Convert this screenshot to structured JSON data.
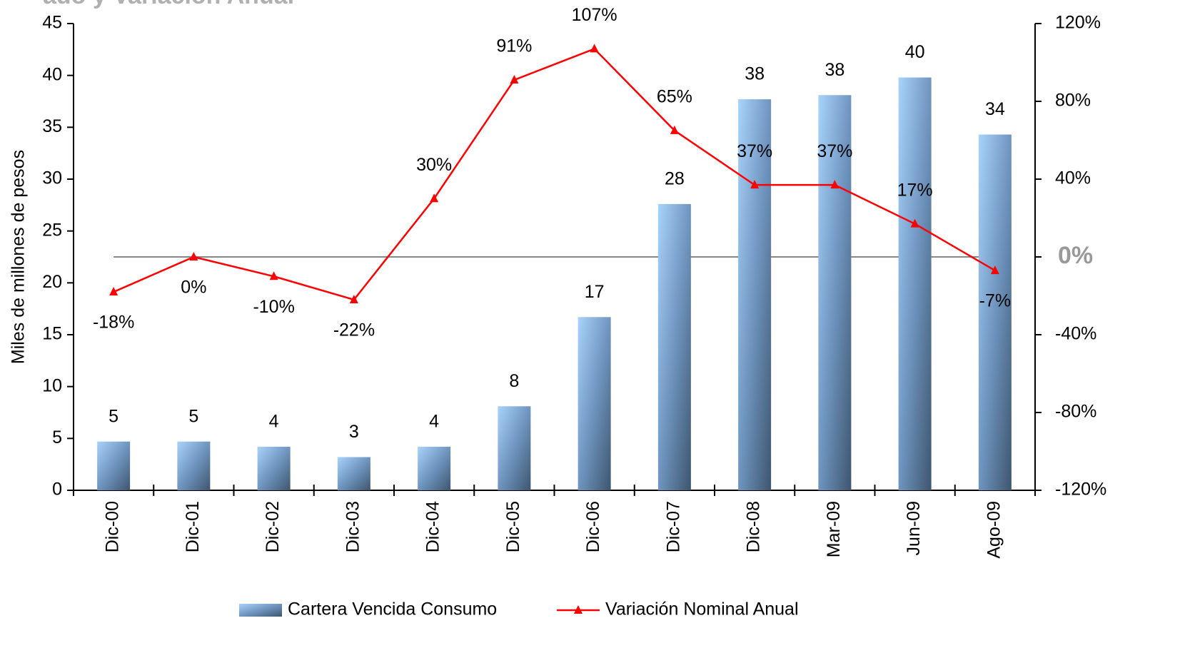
{
  "chart_data": {
    "type": "bar-line",
    "title": "ado y Variación Anual",
    "y_label": "Miles de millones de pesos",
    "categories": [
      "Dic-00",
      "Dic-01",
      "Dic-02",
      "Dic-03",
      "Dic-04",
      "Dic-05",
      "Dic-06",
      "Dic-07",
      "Dic-08",
      "Mar-09",
      "Jun-09",
      "Ago-09"
    ],
    "series": [
      {
        "name": "Cartera Vencida Consumo",
        "color": "#7fa8d4",
        "type": "bar",
        "values": [
          4.7,
          4.7,
          4.2,
          3.2,
          4.2,
          8.1,
          16.7,
          27.6,
          37.7,
          38.1,
          39.8,
          34.3
        ],
        "value_labels": [
          "5",
          "5",
          "4",
          "3",
          "4",
          "8",
          "17",
          "28",
          "38",
          "38",
          "40",
          "34"
        ]
      },
      {
        "name": "Variación Nominal Anual",
        "color": "#ff0000",
        "type": "line",
        "axis": "y2",
        "values": [
          -18,
          0,
          -10,
          -22,
          30,
          91,
          107,
          65,
          37,
          37,
          17,
          -7
        ],
        "value_labels": [
          "-18%",
          "0%",
          "-10%",
          "-22%",
          "30%",
          "91%",
          "107%",
          "65%",
          "37%",
          "37%",
          "17%",
          "-7%"
        ]
      }
    ],
    "ylim": [
      0,
      45
    ],
    "yticks": [
      0,
      5,
      10,
      15,
      20,
      25,
      30,
      35,
      40,
      45
    ],
    "y2lim": [
      -120,
      120
    ],
    "y2ticks": [
      {
        "value": -120,
        "label": "-120%"
      },
      {
        "value": -80,
        "label": "-80%"
      },
      {
        "value": -40,
        "label": "-40%"
      },
      {
        "value": 0,
        "label": "0%"
      },
      {
        "value": 40,
        "label": "40%"
      },
      {
        "value": 80,
        "label": "80%"
      },
      {
        "value": 120,
        "label": "120%"
      }
    ],
    "legend": "bottom"
  }
}
